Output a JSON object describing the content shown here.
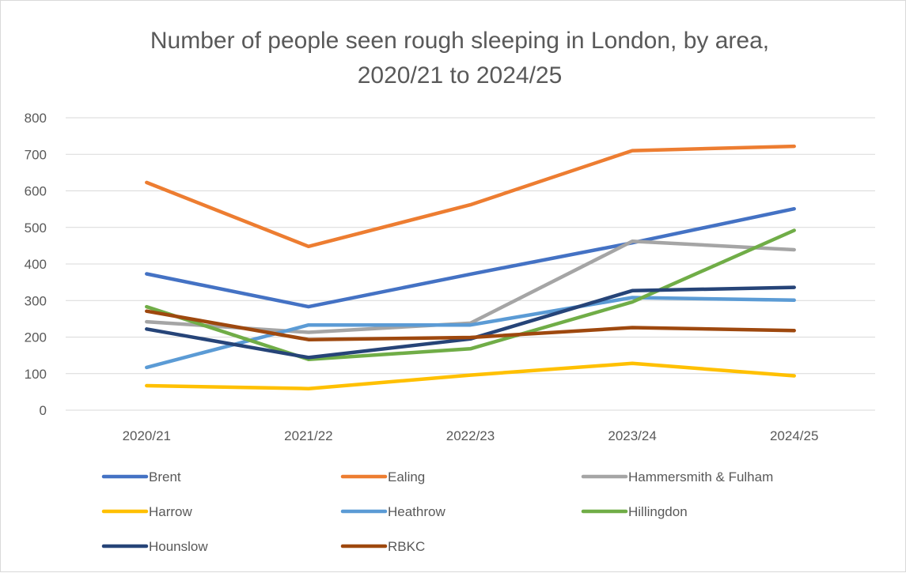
{
  "chart_data": {
    "type": "line",
    "title": [
      "Number of people seen rough sleeping in London, by area,",
      "2020/21 to 2024/25"
    ],
    "xlabel": "",
    "ylabel": "",
    "categories": [
      "2020/21",
      "2021/22",
      "2022/23",
      "2023/24",
      "2024/25"
    ],
    "ylim": [
      0,
      800
    ],
    "yticks": [
      0,
      100,
      200,
      300,
      400,
      500,
      600,
      700,
      800
    ],
    "grid": true,
    "legend_position": "bottom",
    "series": [
      {
        "name": "Brent",
        "color": "#4472C4",
        "values": [
          373,
          283,
          372,
          458,
          551
        ]
      },
      {
        "name": "Ealing",
        "color": "#ED7D31",
        "values": [
          623,
          448,
          562,
          710,
          722
        ]
      },
      {
        "name": "Hammersmith & Fulham",
        "color": "#A5A5A5",
        "values": [
          242,
          213,
          238,
          462,
          439
        ]
      },
      {
        "name": "Harrow",
        "color": "#FFC000",
        "values": [
          67,
          59,
          96,
          128,
          94
        ]
      },
      {
        "name": "Heathrow",
        "color": "#5B9BD5",
        "values": [
          117,
          233,
          233,
          308,
          301
        ]
      },
      {
        "name": "Hillingdon",
        "color": "#70AD47",
        "values": [
          283,
          139,
          168,
          296,
          492
        ]
      },
      {
        "name": "Hounslow",
        "color": "#264478",
        "values": [
          222,
          144,
          195,
          327,
          336
        ]
      },
      {
        "name": "RBKC",
        "color": "#9E480E",
        "values": [
          271,
          193,
          199,
          226,
          218
        ]
      }
    ]
  }
}
